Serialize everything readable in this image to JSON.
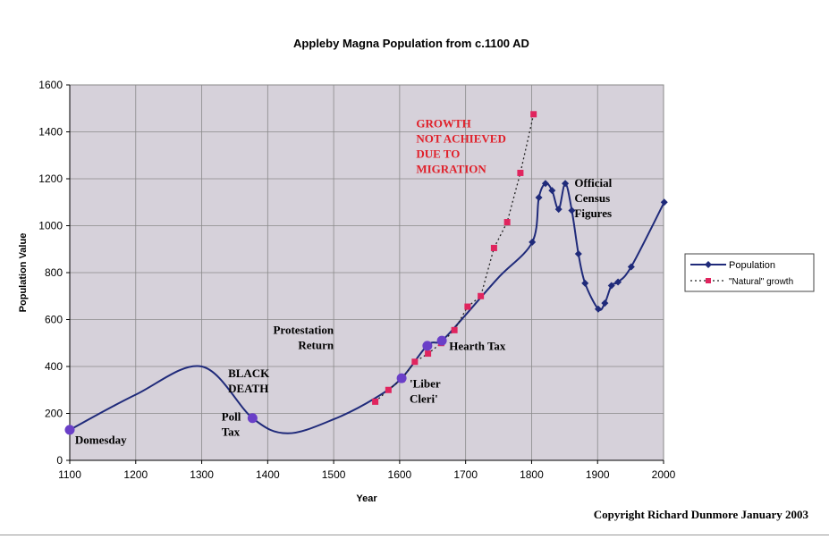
{
  "chart_data": {
    "type": "line",
    "title": "Appleby Magna Population from c.1100 AD",
    "xlabel": "Year",
    "ylabel": "Population Value",
    "xlim": [
      1100,
      2000
    ],
    "ylim": [
      0,
      1600
    ],
    "x_ticks": [
      "1100",
      "1200",
      "1300",
      "1400",
      "1500",
      "1600",
      "1700",
      "1800",
      "1900",
      "2000"
    ],
    "y_ticks": [
      "0",
      "200",
      "400",
      "600",
      "800",
      "1000",
      "1200",
      "1400",
      "1600"
    ],
    "grid": true,
    "legend_position": "right",
    "series": [
      {
        "name": "Population",
        "color": "#1f2a7a",
        "marker": "diamond",
        "points": [
          {
            "x": 1100,
            "y": 130
          },
          {
            "x": 1200,
            "y": 280
          },
          {
            "x": 1300,
            "y": 400
          },
          {
            "x": 1377,
            "y": 180
          },
          {
            "x": 1430,
            "y": 115
          },
          {
            "x": 1500,
            "y": 175
          },
          {
            "x": 1563,
            "y": 265
          },
          {
            "x": 1603,
            "y": 350
          },
          {
            "x": 1642,
            "y": 490
          },
          {
            "x": 1664,
            "y": 510
          },
          {
            "x": 1700,
            "y": 620
          },
          {
            "x": 1750,
            "y": 780
          },
          {
            "x": 1801,
            "y": 930
          },
          {
            "x": 1811,
            "y": 1120
          },
          {
            "x": 1821,
            "y": 1180
          },
          {
            "x": 1831,
            "y": 1150
          },
          {
            "x": 1841,
            "y": 1070
          },
          {
            "x": 1851,
            "y": 1180
          },
          {
            "x": 1861,
            "y": 1065
          },
          {
            "x": 1871,
            "y": 880
          },
          {
            "x": 1881,
            "y": 755
          },
          {
            "x": 1901,
            "y": 645
          },
          {
            "x": 1911,
            "y": 670
          },
          {
            "x": 1921,
            "y": 745
          },
          {
            "x": 1931,
            "y": 760
          },
          {
            "x": 1951,
            "y": 825
          },
          {
            "x": 2001,
            "y": 1100
          }
        ]
      },
      {
        "name": "\"Natural\" growth",
        "color": "#e0245e",
        "marker": "square",
        "points": [
          {
            "x": 1563,
            "y": 250
          },
          {
            "x": 1583,
            "y": 300
          },
          {
            "x": 1603,
            "y": 345
          },
          {
            "x": 1623,
            "y": 420
          },
          {
            "x": 1643,
            "y": 455
          },
          {
            "x": 1663,
            "y": 500
          },
          {
            "x": 1683,
            "y": 555
          },
          {
            "x": 1703,
            "y": 655
          },
          {
            "x": 1723,
            "y": 700
          },
          {
            "x": 1743,
            "y": 905
          },
          {
            "x": 1763,
            "y": 1015
          },
          {
            "x": 1783,
            "y": 1225
          },
          {
            "x": 1803,
            "y": 1475
          }
        ]
      }
    ],
    "markers": [
      {
        "x": 1100,
        "y": 130
      },
      {
        "x": 1377,
        "y": 180
      },
      {
        "x": 1603,
        "y": 350
      },
      {
        "x": 1642,
        "y": 488
      },
      {
        "x": 1664,
        "y": 510
      }
    ],
    "annotations": [
      {
        "id": "domesday",
        "lines": [
          "Domesday"
        ],
        "x": 1108,
        "y": 70,
        "color": "#000000"
      },
      {
        "id": "black-death",
        "lines": [
          "BLACK",
          "DEATH"
        ],
        "x": 1340,
        "y": 355,
        "color": "#000000"
      },
      {
        "id": "poll-tax",
        "lines": [
          "Poll",
          "Tax"
        ],
        "x": 1330,
        "y": 170,
        "color": "#000000"
      },
      {
        "id": "protestation-return",
        "lines": [
          "Protestation",
          "Return"
        ],
        "x": 1500,
        "y": 540,
        "color": "#000000",
        "anchor": "end"
      },
      {
        "id": "hearth-tax",
        "lines": [
          "Hearth Tax"
        ],
        "x": 1675,
        "y": 470,
        "color": "#000000"
      },
      {
        "id": "liber-cleri",
        "lines": [
          "'Liber",
          "Cleri'"
        ],
        "x": 1615,
        "y": 310,
        "color": "#000000"
      },
      {
        "id": "growth-note",
        "lines": [
          "GROWTH",
          "NOT ACHIEVED",
          "DUE TO",
          "MIGRATION"
        ],
        "x": 1625,
        "y": 1420,
        "color": "#e0202a"
      },
      {
        "id": "census",
        "lines": [
          "Official",
          "Census",
          "Figures"
        ],
        "x": 1865,
        "y": 1165,
        "color": "#000000"
      }
    ]
  },
  "copyright": "Copyright Richard Dunmore January 2003"
}
